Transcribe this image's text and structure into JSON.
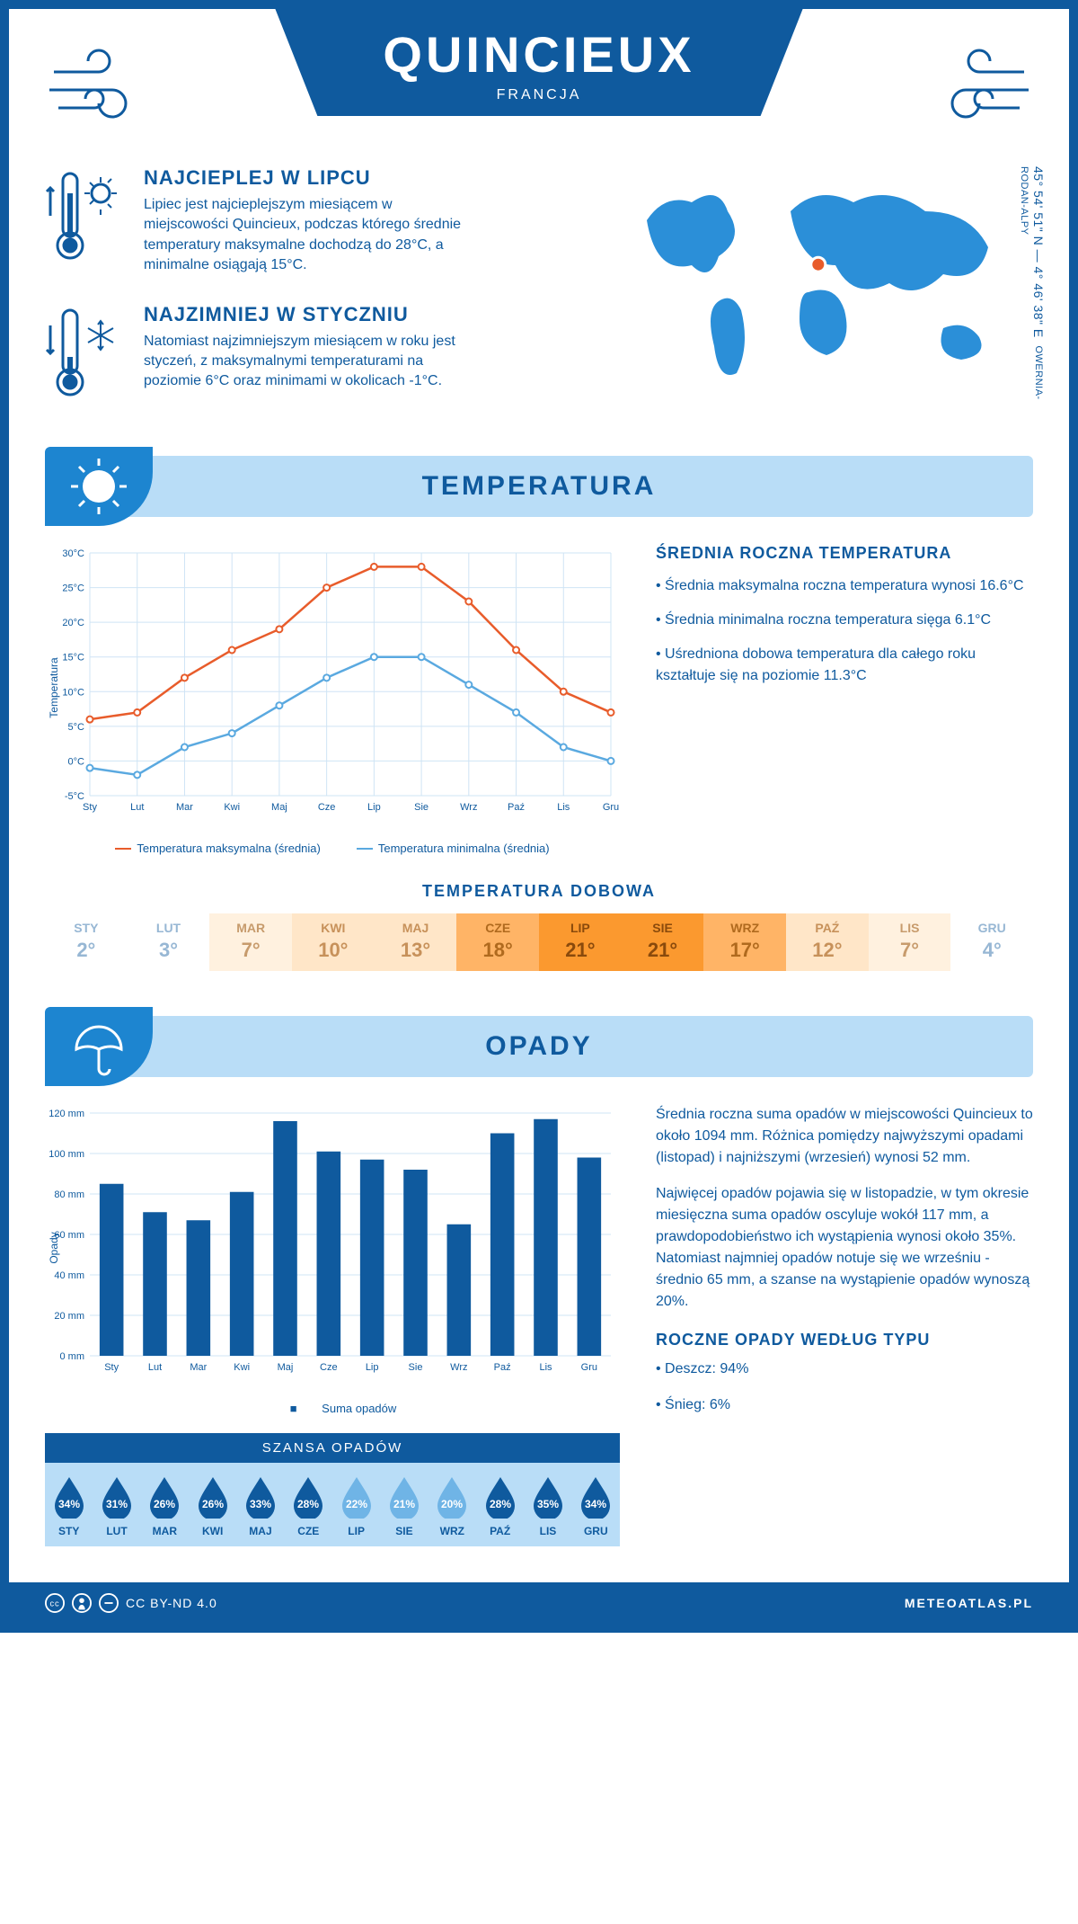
{
  "header": {
    "city": "QUINCIEUX",
    "country": "FRANCJA",
    "coords_line1": "45° 54' 51\" N — 4° 46' 38\" E",
    "coords_line2": "OWERNIA-RODAN-ALPY"
  },
  "map": {
    "marker_color": "#e85c2b",
    "land_color": "#2b8fd8",
    "marker_pos": [
      0.48,
      0.42
    ]
  },
  "facts": {
    "hot": {
      "title": "NAJCIEPLEJ W LIPCU",
      "body": "Lipiec jest najcieplejszym miesiącem w miejscowości Quincieux, podczas którego średnie temperatury maksymalne dochodzą do 28°C, a minimalne osiągają 15°C."
    },
    "cold": {
      "title": "NAJZIMNIEJ W STYCZNIU",
      "body": "Natomiast najzimniejszym miesiącem w roku jest styczeń, z maksymalnymi temperaturami na poziomie 6°C oraz minimami w okolicach -1°C."
    }
  },
  "sections": {
    "temp": "TEMPERATURA",
    "rain": "OPADY"
  },
  "months_short": [
    "Sty",
    "Lut",
    "Mar",
    "Kwi",
    "Maj",
    "Cze",
    "Lip",
    "Sie",
    "Wrz",
    "Paź",
    "Lis",
    "Gru"
  ],
  "months_upper": [
    "STY",
    "LUT",
    "MAR",
    "KWI",
    "MAJ",
    "CZE",
    "LIP",
    "SIE",
    "WRZ",
    "PAŹ",
    "LIS",
    "GRU"
  ],
  "temp_chart": {
    "type": "line",
    "y_label": "Temperatura",
    "y_min": -5,
    "y_max": 30,
    "y_step": 5,
    "series_max": {
      "label": "Temperatura maksymalna (średnia)",
      "color": "#e85c2b",
      "values": [
        6,
        7,
        12,
        16,
        19,
        25,
        28,
        28,
        23,
        16,
        10,
        7
      ]
    },
    "series_min": {
      "label": "Temperatura minimalna (średnia)",
      "color": "#5aa9e0",
      "values": [
        -1,
        -2,
        2,
        4,
        8,
        12,
        15,
        15,
        11,
        7,
        2,
        0
      ]
    },
    "grid_color": "#cfe4f5",
    "bg": "#ffffff",
    "axis_fontsize": 11
  },
  "temp_text": {
    "heading": "ŚREDNIA ROCZNA TEMPERATURA",
    "p1": "• Średnia maksymalna roczna temperatura wynosi 16.6°C",
    "p2": "• Średnia minimalna roczna temperatura sięga 6.1°C",
    "p3": "• Uśredniona dobowa temperatura dla całego roku kształtuje się na poziomie 11.3°C"
  },
  "dobowa": {
    "title": "TEMPERATURA DOBOWA",
    "values": [
      2,
      3,
      7,
      10,
      13,
      18,
      21,
      21,
      17,
      12,
      7,
      4
    ],
    "colors": [
      "#ffffff",
      "#ffffff",
      "#fff1df",
      "#ffe6c8",
      "#ffe6c8",
      "#ffb466",
      "#fb992f",
      "#fb992f",
      "#ffb466",
      "#ffe6c8",
      "#fff1df",
      "#ffffff"
    ],
    "text_colors": [
      "#97b7d4",
      "#97b7d4",
      "#c79b6c",
      "#c7915a",
      "#c7915a",
      "#b06a1e",
      "#8a4a0c",
      "#8a4a0c",
      "#b06a1e",
      "#c7915a",
      "#c79b6c",
      "#97b7d4"
    ]
  },
  "rain_chart": {
    "type": "bar",
    "y_label": "Opady",
    "y_min": 0,
    "y_max": 120,
    "y_step": 20,
    "values": [
      85,
      71,
      67,
      81,
      116,
      101,
      97,
      92,
      65,
      110,
      117,
      98
    ],
    "bar_color": "#0f5a9e",
    "grid_color": "#cfe4f5",
    "legend_label": "Suma opadów",
    "axis_fontsize": 11
  },
  "rain_text": {
    "p1": "Średnia roczna suma opadów w miejscowości Quincieux to około 1094 mm. Różnica pomiędzy najwyższymi opadami (listopad) i najniższymi (wrzesień) wynosi 52 mm.",
    "p2": "Najwięcej opadów pojawia się w listopadzie, w tym okresie miesięczna suma opadów oscyluje wokół 117 mm, a prawdopodobieństwo ich wystąpienia wynosi około 35%. Natomiast najmniej opadów notuje się we wrześniu - średnio 65 mm, a szanse na wystąpienie opadów wynoszą 20%.",
    "type_heading": "ROCZNE OPADY WEDŁUG TYPU",
    "type_rain": "• Deszcz: 94%",
    "type_snow": "• Śnieg: 6%"
  },
  "chance": {
    "title": "SZANSA OPADÓW",
    "pct": [
      34,
      31,
      26,
      26,
      33,
      28,
      22,
      21,
      20,
      28,
      35,
      34
    ],
    "drop_dark": "#0f5a9e",
    "drop_light": "#6fb4e6",
    "light_threshold": 25
  },
  "footer": {
    "license": "CC BY-ND 4.0",
    "brand": "METEOATLAS.PL"
  },
  "palette": {
    "primary": "#0f5a9e",
    "secondary": "#b9ddf7",
    "accent": "#e85c2b",
    "sky": "#2b8fd8"
  }
}
